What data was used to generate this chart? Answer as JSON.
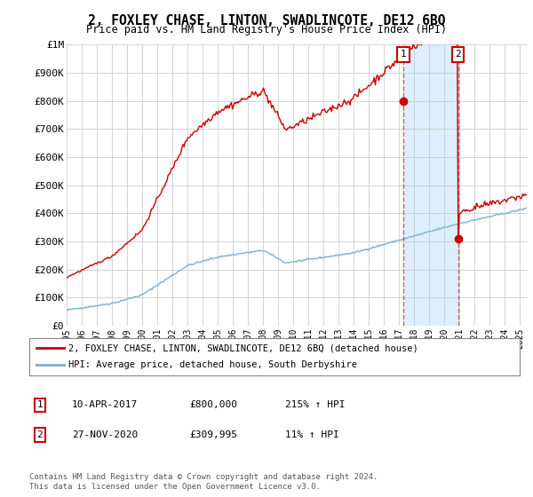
{
  "title": "2, FOXLEY CHASE, LINTON, SWADLINCOTE, DE12 6BQ",
  "subtitle": "Price paid vs. HM Land Registry's House Price Index (HPI)",
  "sale1_date": 2017.27,
  "sale1_price": 800000,
  "sale1_label": "1",
  "sale2_date": 2020.9,
  "sale2_price": 309995,
  "sale2_label": "2",
  "xmin": 1995.0,
  "xmax": 2025.5,
  "ymin": 0,
  "ymax": 1000000,
  "hpi_color": "#7bafd4",
  "property_color": "#cc0000",
  "background_color": "#ffffff",
  "grid_color": "#cccccc",
  "highlight_color": "#ddeeff",
  "legend_label_property": "2, FOXLEY CHASE, LINTON, SWADLINCOTE, DE12 6BQ (detached house)",
  "legend_label_hpi": "HPI: Average price, detached house, South Derbyshire",
  "table_row1": [
    "1",
    "10-APR-2017",
    "£800,000",
    "215% ↑ HPI"
  ],
  "table_row2": [
    "2",
    "27-NOV-2020",
    "£309,995",
    "11% ↑ HPI"
  ],
  "footnote": "Contains HM Land Registry data © Crown copyright and database right 2024.\nThis data is licensed under the Open Government Licence v3.0.",
  "ytick_labels": [
    "£0",
    "£100K",
    "£200K",
    "£300K",
    "£400K",
    "£500K",
    "£600K",
    "£700K",
    "£800K",
    "£900K",
    "£1M"
  ],
  "ytick_values": [
    0,
    100000,
    200000,
    300000,
    400000,
    500000,
    600000,
    700000,
    800000,
    900000,
    1000000
  ]
}
